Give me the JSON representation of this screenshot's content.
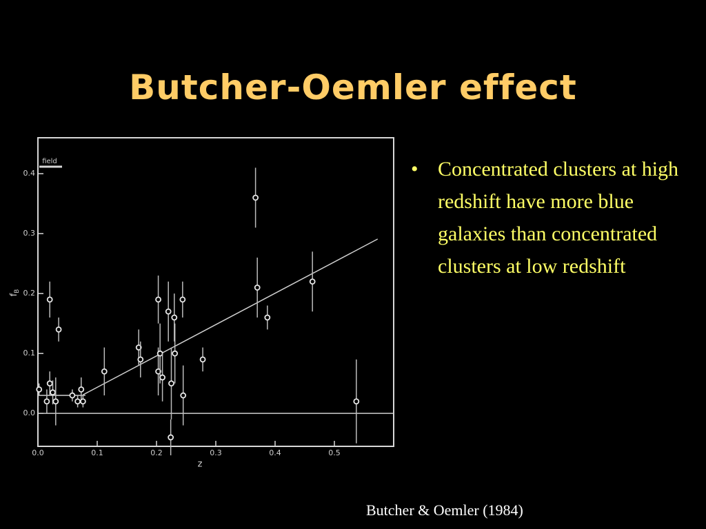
{
  "slide": {
    "title": "Butcher-Oemler effect",
    "bullets": [
      "Concentrated clusters at high redshift have more blue galaxies than concentrated clusters at low redshift"
    ],
    "credit": "Butcher & Oemler (1984)"
  },
  "chart_data": {
    "type": "scatter",
    "xlabel": "z",
    "ylabel": "f",
    "ylabel_sub": "B",
    "annotation": "field",
    "x": [
      0.002,
      0.015,
      0.02,
      0.02,
      0.025,
      0.03,
      0.035,
      0.058,
      0.067,
      0.073,
      0.076,
      0.112,
      0.17,
      0.173,
      0.203,
      0.203,
      0.206,
      0.21,
      0.22,
      0.224,
      0.225,
      0.23,
      0.231,
      0.244,
      0.245,
      0.278,
      0.367,
      0.37,
      0.387,
      0.463,
      0.537
    ],
    "values": [
      0.04,
      0.02,
      0.19,
      0.05,
      0.035,
      0.02,
      0.14,
      0.03,
      0.02,
      0.04,
      0.02,
      0.07,
      0.11,
      0.09,
      0.07,
      0.19,
      0.1,
      0.06,
      0.17,
      -0.04,
      0.05,
      0.16,
      0.1,
      0.19,
      0.03,
      0.09,
      0.36,
      0.21,
      0.16,
      0.22,
      0.02
    ],
    "errors": [
      0.01,
      0.02,
      0.03,
      0.02,
      0.02,
      0.04,
      0.02,
      0.01,
      0.01,
      0.02,
      0.01,
      0.04,
      0.03,
      0.03,
      0.04,
      0.04,
      0.05,
      0.04,
      0.05,
      0.03,
      0.06,
      0.04,
      0.05,
      0.03,
      0.05,
      0.02,
      0.05,
      0.05,
      0.02,
      0.05,
      0.07
    ],
    "color": "#e8e8e8",
    "lines": [
      {
        "x": [
          0.076,
          0.573
        ],
        "values": [
          0.031,
          0.291
        ]
      },
      {
        "x": [
          0,
          0.08
        ],
        "values": [
          0.03,
          0.03
        ]
      },
      {
        "x": [
          0,
          0.6
        ],
        "values": [
          0,
          0
        ]
      }
    ],
    "xlim": [
      0,
      0.6
    ],
    "ylim": [
      -0.055,
      0.46
    ],
    "xticks": [
      {
        "value": 0,
        "label": "0.0"
      },
      0.1,
      0.2,
      0.3,
      0.4,
      0.5
    ],
    "yticks": [
      {
        "value": 0,
        "label": "0.0"
      },
      0.1,
      0.2,
      0.3,
      0.4
    ]
  }
}
